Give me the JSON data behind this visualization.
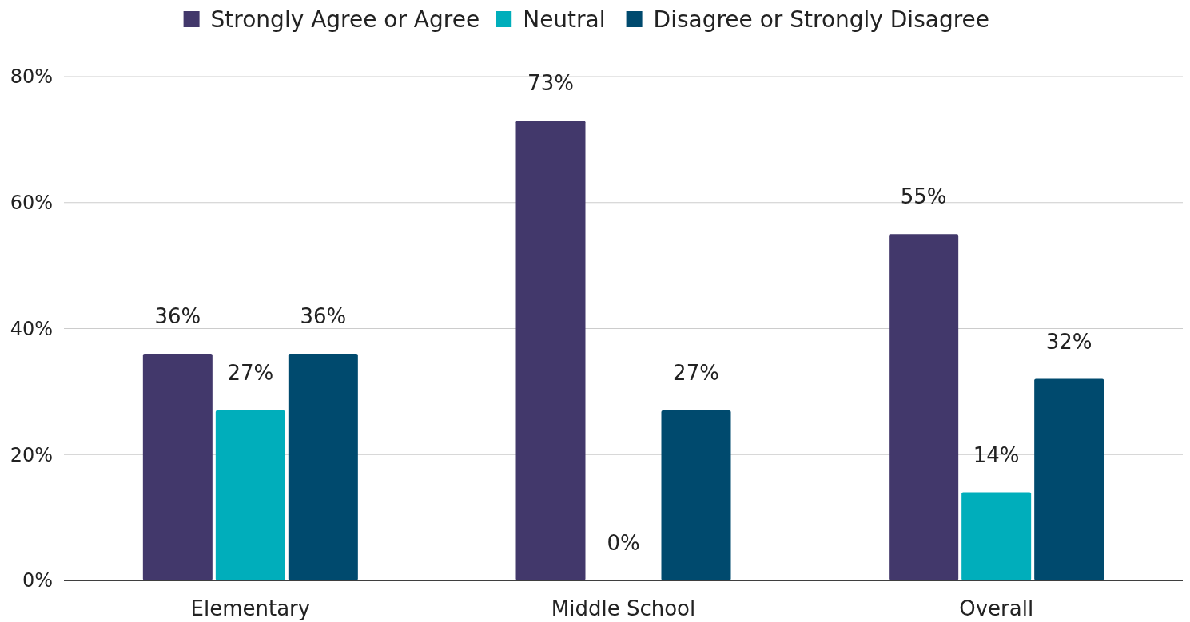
{
  "chart_data": {
    "type": "bar",
    "categories": [
      "Elementary",
      "Middle School",
      "Overall"
    ],
    "series": [
      {
        "name": "Strongly Agree or Agree",
        "color": "#42386b",
        "values": [
          36,
          73,
          55
        ],
        "value_labels": [
          "36%",
          "73%",
          "55%"
        ]
      },
      {
        "name": "Neutral",
        "color": "#00aebb",
        "values": [
          27,
          0,
          14
        ],
        "value_labels": [
          "27%",
          "0%",
          "14%"
        ]
      },
      {
        "name": "Disagree or Strongly Disagree",
        "color": "#004a6e",
        "values": [
          36,
          27,
          32
        ],
        "value_labels": [
          "36%",
          "27%",
          "32%"
        ]
      }
    ],
    "ylim": [
      0,
      80
    ],
    "yticks": [
      {
        "value": 0,
        "label": "0%"
      },
      {
        "value": 20,
        "label": "20%"
      },
      {
        "value": 40,
        "label": "40%"
      },
      {
        "value": 60,
        "label": "60%"
      },
      {
        "value": 80,
        "label": "80%"
      }
    ],
    "grid": "y",
    "legend": "top"
  }
}
